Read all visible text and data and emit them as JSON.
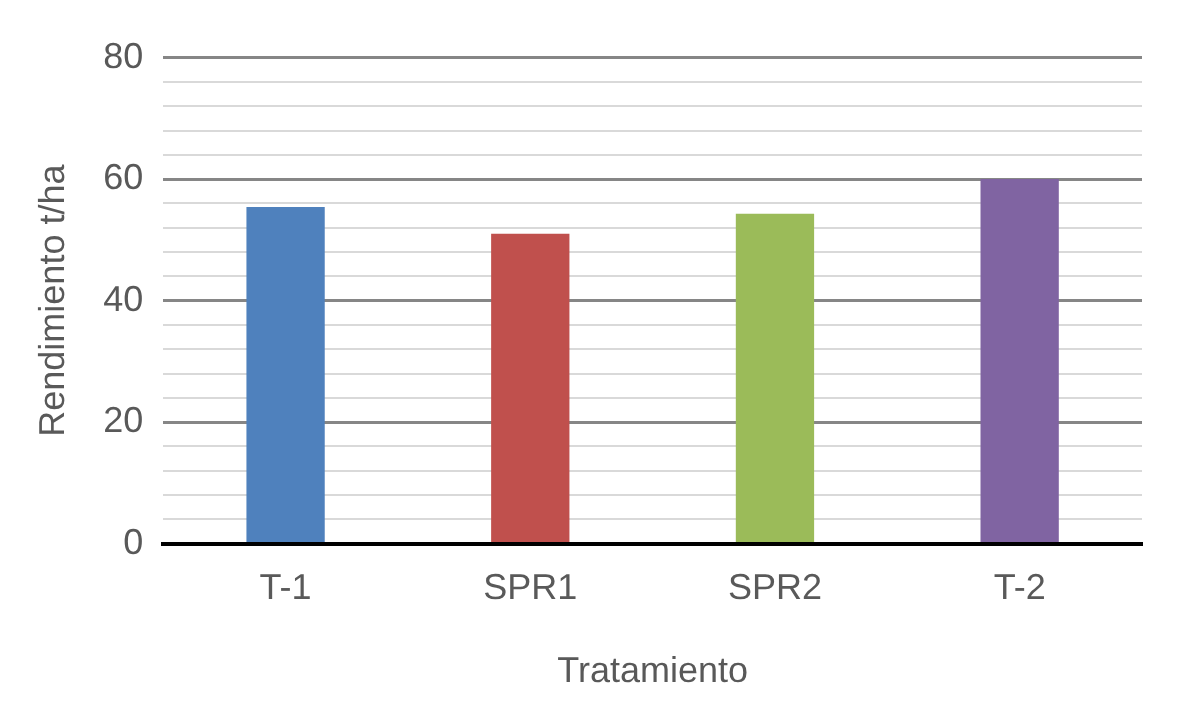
{
  "chart_data": {
    "type": "bar",
    "xlabel": "Tratamiento",
    "ylabel": "Rendimiento t/ha",
    "categories": [
      "T-1",
      "SPR1",
      "SPR2",
      "T-2"
    ],
    "values": [
      55.4,
      51.0,
      54.3,
      60.0
    ],
    "colors": [
      "#4f81bd",
      "#c0504d",
      "#9bbb59",
      "#8064a2"
    ],
    "ylim": [
      0,
      80
    ],
    "yticks": [
      0,
      {
        "value": 4,
        "label": null
      },
      {
        "value": 8,
        "label": null
      },
      {
        "value": 12,
        "label": null
      },
      {
        "value": 16,
        "label": null
      },
      20,
      {
        "value": 24,
        "label": null
      },
      {
        "value": 28,
        "label": null
      },
      {
        "value": 32,
        "label": null
      },
      {
        "value": 36,
        "label": null
      },
      40,
      {
        "value": 44,
        "label": null
      },
      {
        "value": 48,
        "label": null
      },
      {
        "value": 52,
        "label": null
      },
      {
        "value": 56,
        "label": null
      },
      60,
      {
        "value": 64,
        "label": null
      },
      {
        "value": 68,
        "label": null
      },
      {
        "value": 72,
        "label": null
      },
      {
        "value": 76,
        "label": null
      },
      80
    ],
    "grid": "y",
    "legend": false
  }
}
